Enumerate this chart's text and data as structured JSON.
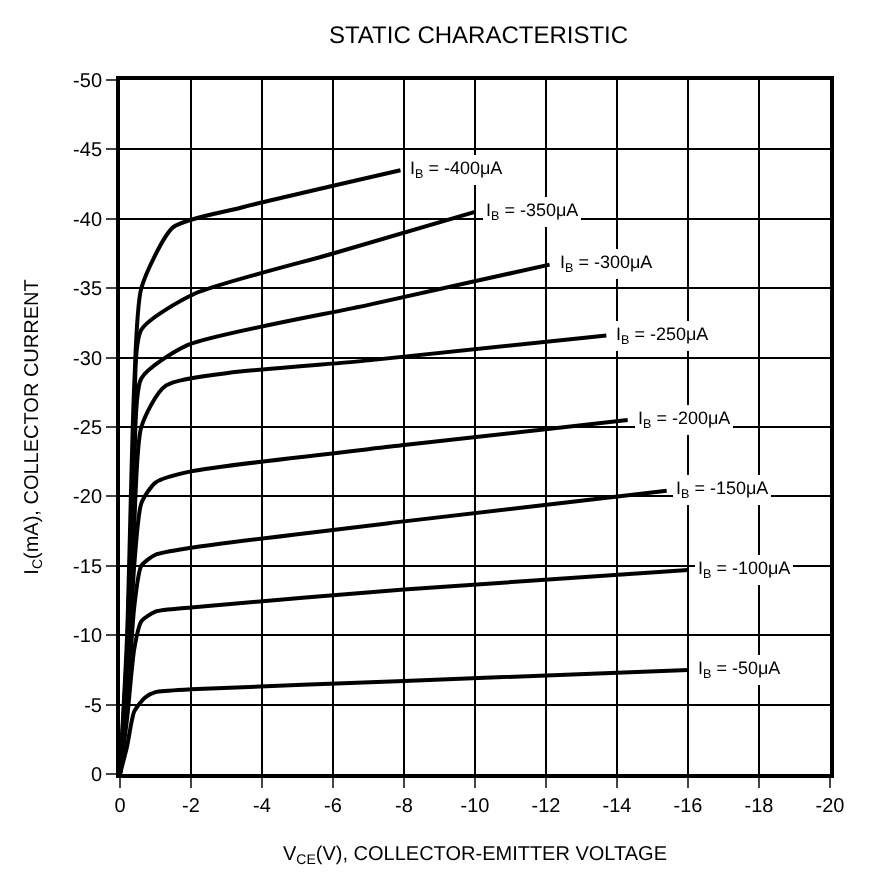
{
  "chart_data": {
    "type": "line",
    "title": "STATIC CHARACTERISTIC",
    "xlabel": "V$_{CE}$(V), COLLECTOR-EMITTER VOLTAGE",
    "ylabel": "I$_{C}$(mA), COLLECTOR CURRENT",
    "xlim": [
      0,
      -20
    ],
    "xticks": [
      0,
      -2,
      -4,
      -6,
      -8,
      -10,
      -12,
      -14,
      -16,
      -18,
      -20
    ],
    "ylim": [
      0,
      -50
    ],
    "yticks": [
      0,
      -5,
      -10,
      -15,
      -20,
      -25,
      -30,
      -35,
      -40,
      -45,
      -50
    ],
    "grid": true,
    "legend": false,
    "marker": "none",
    "line_style": "solid",
    "series": [
      {
        "name": "I$_{B}$ = -50μA",
        "color": "#000000",
        "x": [
          0,
          -0.2,
          -0.4,
          -0.7,
          -1,
          -2,
          -8,
          -16
        ],
        "values": [
          0,
          -2,
          -4.5,
          -5.5,
          -5.9,
          -6.1,
          -6.7,
          -7.5
        ]
      },
      {
        "name": "I$_{B}$ = -100μA",
        "color": "#000000",
        "x": [
          0,
          -0.2,
          -0.4,
          -0.6,
          -1,
          -2,
          -8,
          -16
        ],
        "values": [
          0,
          -4,
          -9,
          -11,
          -11.7,
          -12,
          -13.3,
          -14.7
        ]
      },
      {
        "name": "I$_{B}$ = -150μA",
        "color": "#000000",
        "x": [
          0,
          -0.2,
          -0.4,
          -0.6,
          -1,
          -2,
          -8,
          -15.4
        ],
        "values": [
          0,
          -5,
          -12,
          -15,
          -15.8,
          -16.3,
          -18.2,
          -20.4
        ]
      },
      {
        "name": "I$_{B}$ = -200μA",
        "color": "#000000",
        "x": [
          0,
          -0.2,
          -0.4,
          -0.6,
          -1,
          -2,
          -8,
          -14.3
        ],
        "values": [
          0,
          -6,
          -15,
          -19.5,
          -21,
          -21.8,
          -23.7,
          -25.5
        ]
      },
      {
        "name": "I$_{B}$ = -250μA",
        "color": "#000000",
        "x": [
          0,
          -0.2,
          -0.4,
          -0.6,
          -1.3,
          -7,
          -13.7
        ],
        "values": [
          0,
          -7,
          -18,
          -25,
          -28,
          -29.8,
          -31.6
        ]
      },
      {
        "name": "I$_{B}$ = -300μA",
        "color": "#000000",
        "x": [
          0,
          -0.2,
          -0.4,
          -0.6,
          -1.9,
          -7,
          -12.1
        ],
        "values": [
          0,
          -8,
          -22,
          -28.5,
          -30.9,
          -33.8,
          -36.7
        ]
      },
      {
        "name": "I$_{B}$ = -350μA",
        "color": "#000000",
        "x": [
          0,
          -0.2,
          -0.4,
          -0.6,
          -2.1,
          -6,
          -10
        ],
        "values": [
          0,
          -9,
          -25,
          -32,
          -34.6,
          -37.5,
          -40.5
        ]
      },
      {
        "name": "I$_{B}$ = -400μA",
        "color": "#000000",
        "x": [
          0,
          -0.2,
          -0.4,
          -0.6,
          -1.5,
          -3.4,
          -7.9
        ],
        "values": [
          0,
          -10,
          -28,
          -35,
          -39.4,
          -40.8,
          -43.5
        ]
      }
    ]
  }
}
